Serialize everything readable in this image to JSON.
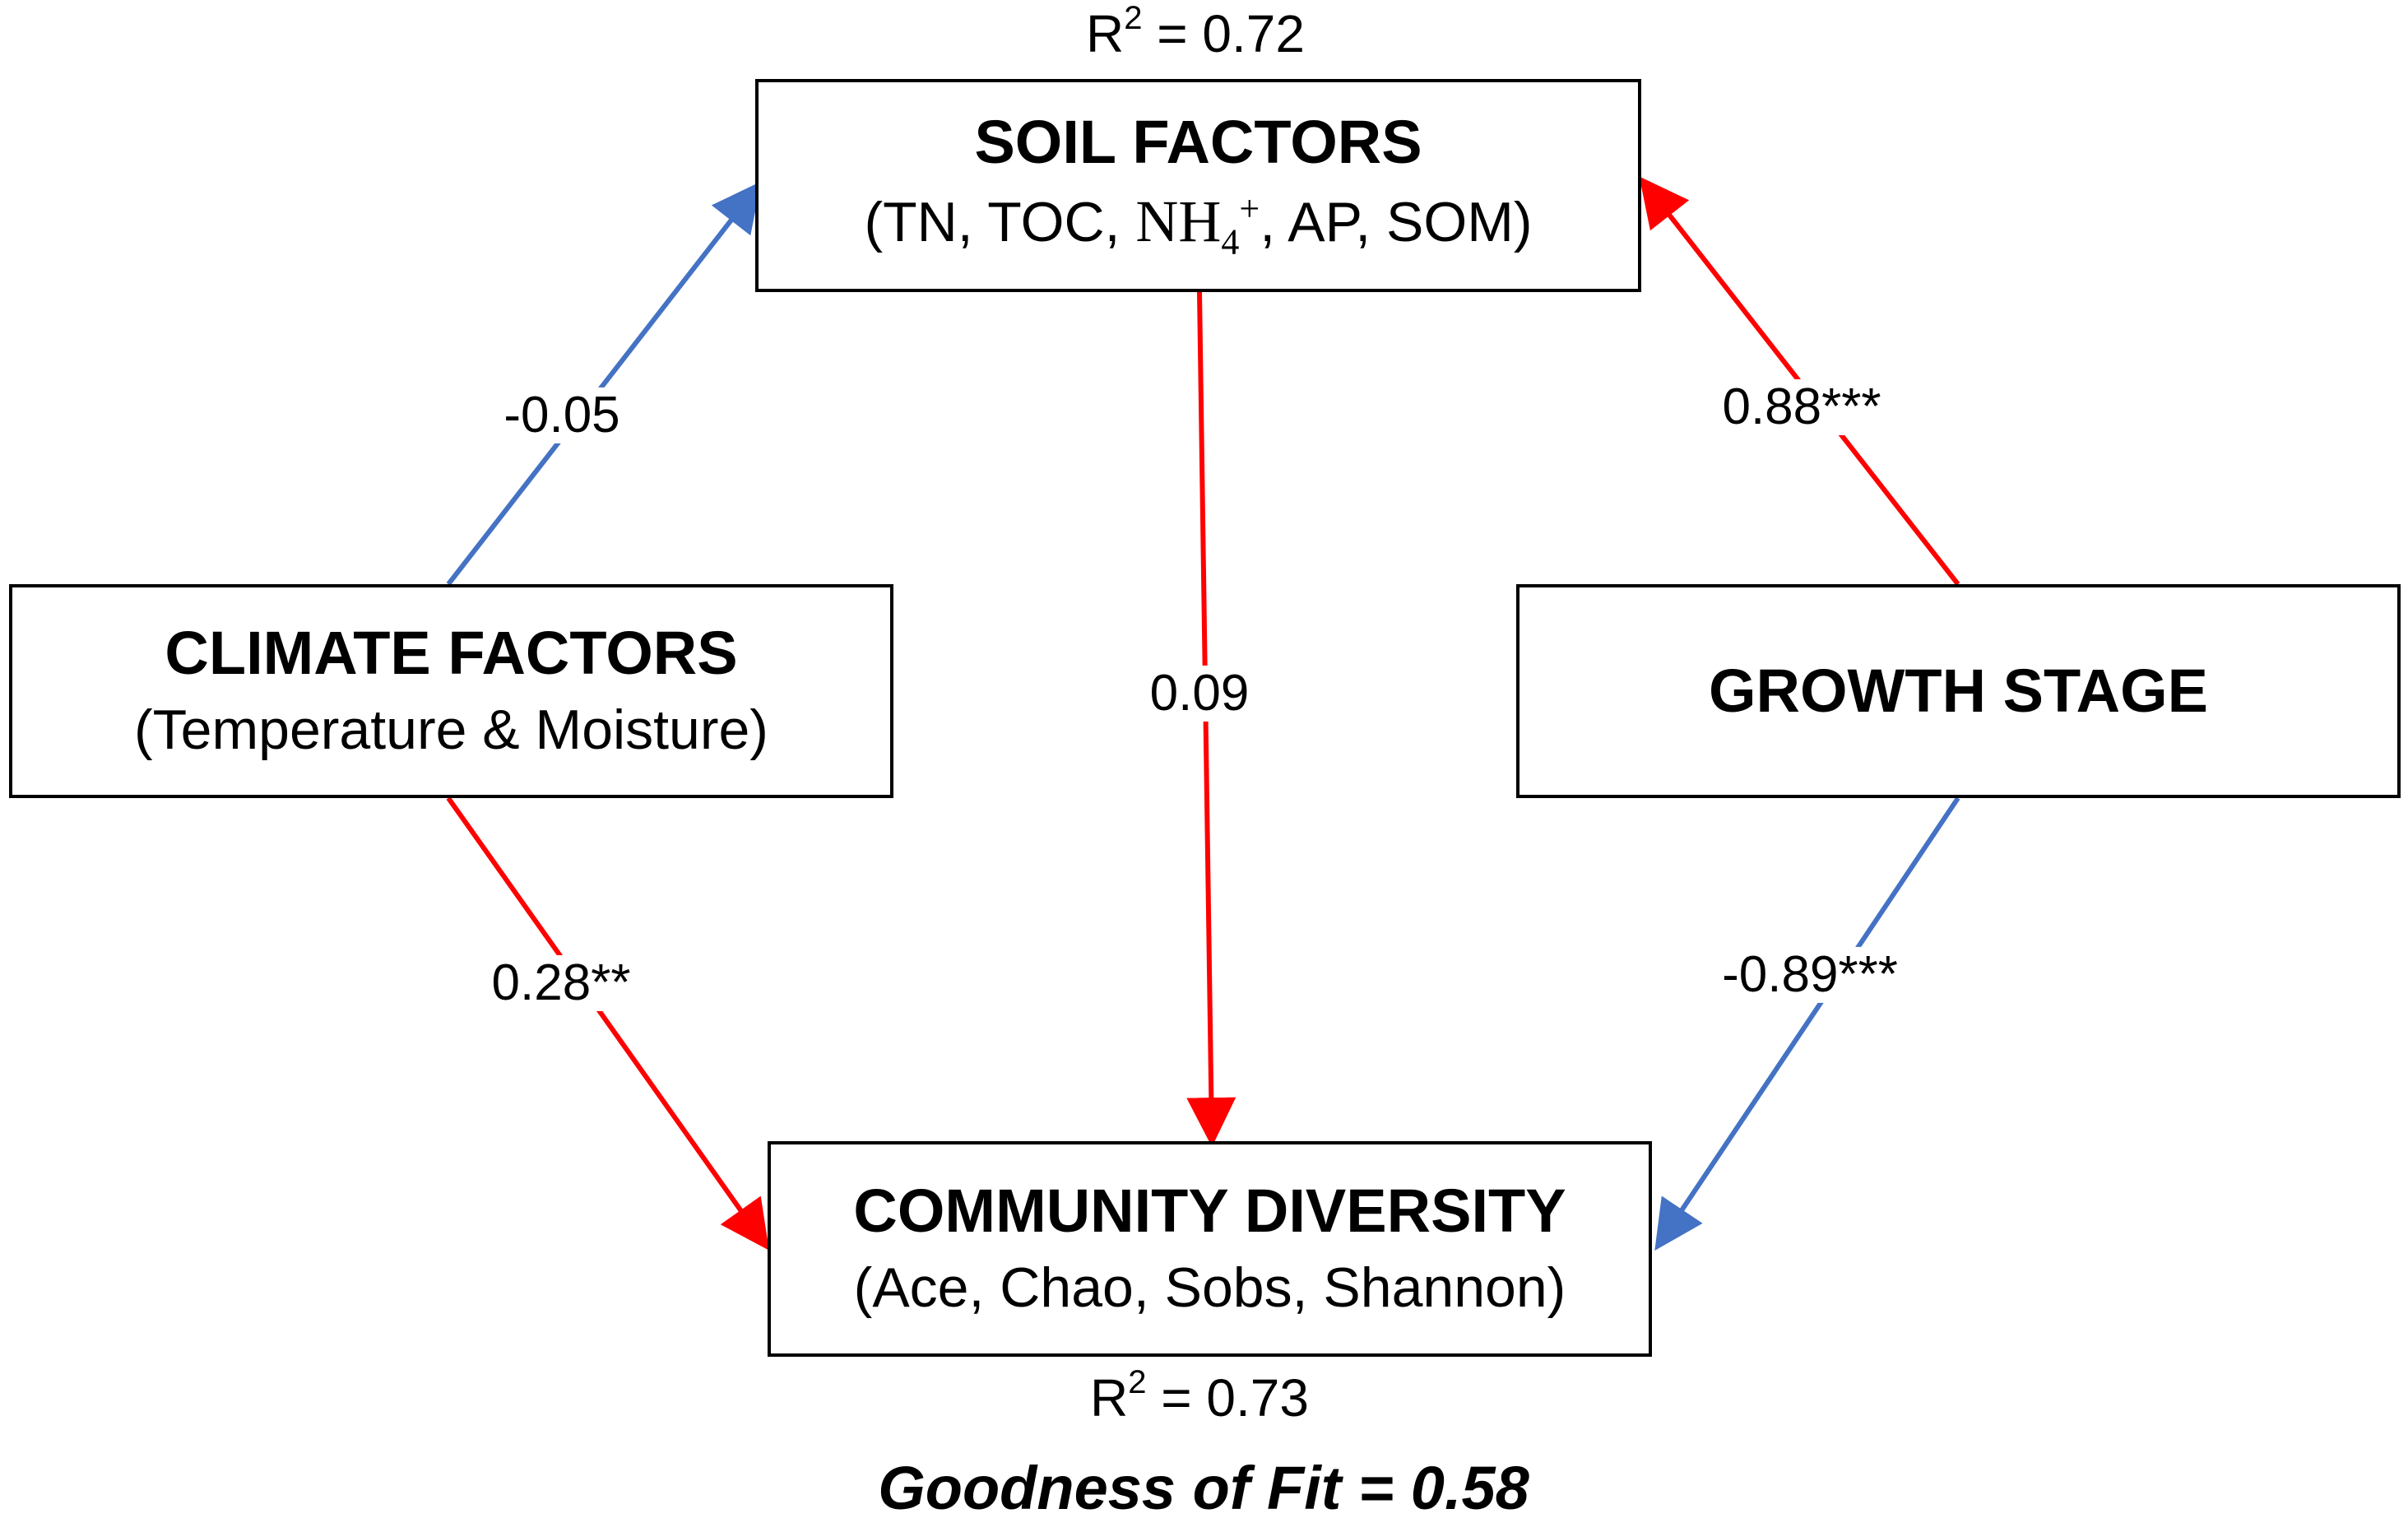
{
  "nodes": {
    "soil": {
      "title": "SOIL FACTORS",
      "sub_before": "(TN, TOC, ",
      "sub_formula": "NH",
      "sub_formula_subscript": "4",
      "sub_formula_superscript": "+",
      "sub_after": ", AP, SOM)"
    },
    "climate": {
      "title": "CLIMATE FACTORS",
      "sub": "(Temperature & Moisture)"
    },
    "growth": {
      "title": "GROWTH STAGE"
    },
    "community": {
      "title": "COMMUNITY DIVERSITY",
      "sub": "(Ace, Chao, Sobs, Shannon)"
    }
  },
  "r2": {
    "soil": {
      "prefix": "R",
      "exp": "2",
      "value": " = 0.72"
    },
    "community": {
      "prefix": "R",
      "exp": "2",
      "value": " = 0.73"
    }
  },
  "paths": [
    {
      "from": "climate",
      "to": "soil",
      "coefficient": "-0.05",
      "color": "#4472c4"
    },
    {
      "from": "growth",
      "to": "soil",
      "coefficient": "0.88***",
      "color": "#ff0000"
    },
    {
      "from": "soil",
      "to": "community",
      "coefficient": "0.09",
      "color": "#ff0000"
    },
    {
      "from": "climate",
      "to": "community",
      "coefficient": "0.28**",
      "color": "#ff0000"
    },
    {
      "from": "growth",
      "to": "community",
      "coefficient": "-0.89***",
      "color": "#4472c4"
    }
  ],
  "goodness_of_fit": "Goodness of Fit = 0.58"
}
